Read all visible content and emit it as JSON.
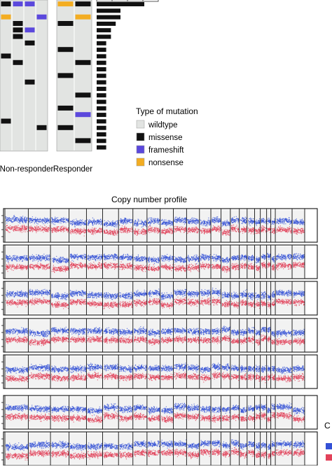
{
  "colors": {
    "wildtype": "#e2e4e2",
    "missense": "#111111",
    "frameshift": "#5b48dc",
    "nonsense": "#f3ad22",
    "gain": "#3451d6",
    "loss": "#e2425a",
    "panel_bg": "#f2f2f2"
  },
  "chart_data": [
    {
      "type": "heatmap",
      "name": "mutation-matrix",
      "groups": [
        {
          "label": "Non-responder",
          "columns": 4
        },
        {
          "label": "Responder",
          "columns": 2
        }
      ],
      "rows": 23,
      "legend": {
        "title": "Type of mutation",
        "entries": [
          {
            "key": "wildtype",
            "label": "wildtype"
          },
          {
            "key": "missense",
            "label": "missense"
          },
          {
            "key": "frameshift",
            "label": "frameshift"
          },
          {
            "key": "nonsense",
            "label": "nonsense"
          }
        ]
      },
      "cells": [
        {
          "group": 0,
          "col": 0,
          "row": 0,
          "type": "missense"
        },
        {
          "group": 0,
          "col": 1,
          "row": 0,
          "type": "frameshift"
        },
        {
          "group": 0,
          "col": 2,
          "row": 0,
          "type": "frameshift"
        },
        {
          "group": 0,
          "col": 0,
          "row": 2,
          "type": "nonsense"
        },
        {
          "group": 0,
          "col": 3,
          "row": 2,
          "type": "frameshift"
        },
        {
          "group": 0,
          "col": 1,
          "row": 3,
          "type": "missense"
        },
        {
          "group": 0,
          "col": 1,
          "row": 4,
          "type": "missense"
        },
        {
          "group": 0,
          "col": 2,
          "row": 4,
          "type": "frameshift"
        },
        {
          "group": 0,
          "col": 1,
          "row": 5,
          "type": "missense"
        },
        {
          "group": 0,
          "col": 2,
          "row": 6,
          "type": "missense"
        },
        {
          "group": 0,
          "col": 0,
          "row": 8,
          "type": "missense"
        },
        {
          "group": 0,
          "col": 1,
          "row": 9,
          "type": "missense"
        },
        {
          "group": 0,
          "col": 2,
          "row": 12,
          "type": "missense"
        },
        {
          "group": 0,
          "col": 0,
          "row": 18,
          "type": "missense"
        },
        {
          "group": 0,
          "col": 3,
          "row": 19,
          "type": "missense"
        },
        {
          "group": 1,
          "col": 0,
          "row": 0,
          "type": "nonsense"
        },
        {
          "group": 1,
          "col": 1,
          "row": 0,
          "type": "missense"
        },
        {
          "group": 1,
          "col": 1,
          "row": 2,
          "type": "nonsense"
        },
        {
          "group": 1,
          "col": 0,
          "row": 3,
          "type": "missense"
        },
        {
          "group": 1,
          "col": 0,
          "row": 7,
          "type": "missense"
        },
        {
          "group": 1,
          "col": 1,
          "row": 9,
          "type": "missense"
        },
        {
          "group": 1,
          "col": 0,
          "row": 11,
          "type": "missense"
        },
        {
          "group": 1,
          "col": 1,
          "row": 14,
          "type": "missense"
        },
        {
          "group": 1,
          "col": 0,
          "row": 16,
          "type": "missense"
        },
        {
          "group": 1,
          "col": 1,
          "row": 17,
          "type": "frameshift"
        },
        {
          "group": 1,
          "col": 0,
          "row": 19,
          "type": "missense"
        },
        {
          "group": 1,
          "col": 1,
          "row": 21,
          "type": "missense"
        }
      ]
    },
    {
      "type": "bar",
      "name": "mutation-frequency",
      "orientation": "horizontal",
      "values": [
        10,
        5,
        5,
        4,
        3,
        3,
        2,
        2,
        2,
        2,
        2,
        2,
        2,
        2,
        2,
        2,
        2,
        2,
        2,
        2,
        2,
        2,
        2
      ],
      "ticks": 4
    },
    {
      "type": "scatter",
      "name": "copy-number-profile",
      "title": "Copy number profile",
      "panels": 7,
      "chromosome_boundaries": [
        0,
        0.078,
        0.152,
        0.214,
        0.272,
        0.326,
        0.379,
        0.427,
        0.474,
        0.518,
        0.562,
        0.606,
        0.649,
        0.687,
        0.721,
        0.752,
        0.782,
        0.808,
        0.833,
        0.852,
        0.873,
        0.887,
        0.902,
        0.958,
        1.0
      ],
      "legend": {
        "title": "C al",
        "entries": [
          {
            "key": "gain"
          },
          {
            "key": "loss"
          }
        ]
      }
    }
  ]
}
